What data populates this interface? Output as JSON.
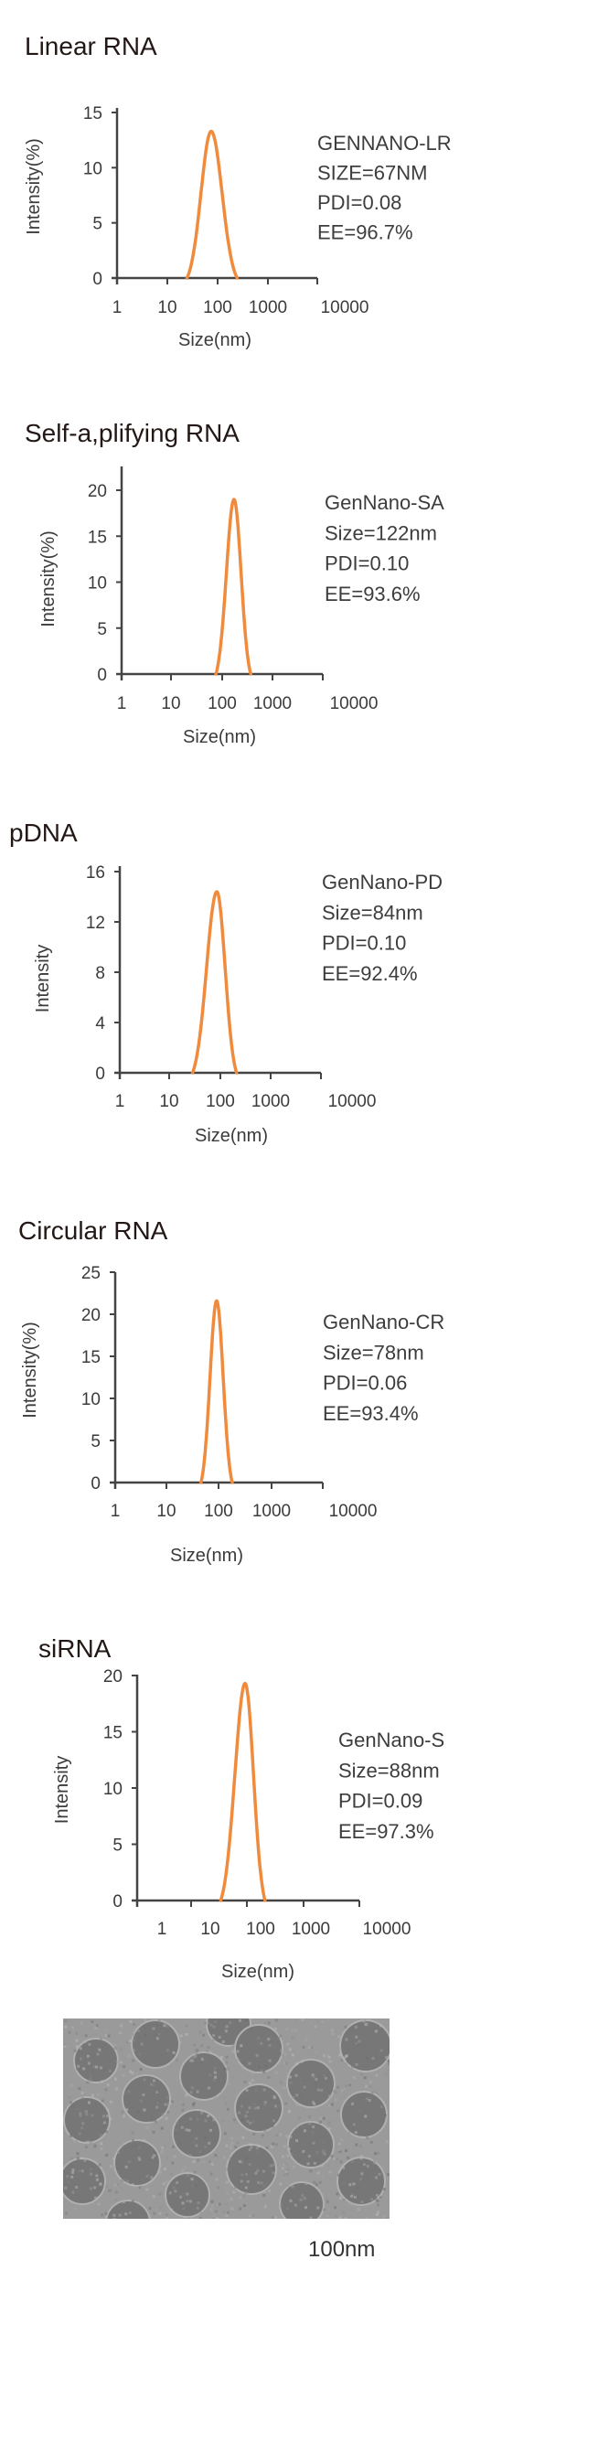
{
  "colors": {
    "curve": "#F08A3C",
    "axis": "#444444",
    "tem_bg": "#9a9a9a",
    "tem_particle": "#777777"
  },
  "chart_data": [
    {
      "type": "line",
      "title": "Linear RNA",
      "xlabel": "Size(nm)",
      "ylabel": "Intensity(%)",
      "xscale": "log",
      "x_ticks": [
        "1",
        "10",
        "100",
        "1000",
        "10000"
      ],
      "y_ticks": [
        "0",
        "5",
        "10",
        "15"
      ],
      "ylim": [
        0,
        15
      ],
      "series": [
        {
          "name": "GENNANO-LR",
          "peak_size_nm": 76,
          "peak_intensity": 13.3,
          "range_nm": [
            25,
            250
          ]
        }
      ],
      "legend": [
        "GENNANO-LR",
        "SIZE=67NM",
        "PDI=0.08",
        "EE=96.7%"
      ]
    },
    {
      "type": "line",
      "title": "Self-a,plifying RNA",
      "xlabel": "Size(nm)",
      "ylabel": "Intensity(%)",
      "xscale": "log",
      "x_ticks": [
        "1",
        "10",
        "100",
        "1000",
        "10000"
      ],
      "y_ticks": [
        "0",
        "5",
        "10",
        "15",
        "20"
      ],
      "ylim": [
        0,
        22
      ],
      "series": [
        {
          "name": "GenNano-SA",
          "peak_size_nm": 172,
          "peak_intensity": 19,
          "range_nm": [
            75,
            370
          ]
        }
      ],
      "legend": [
        "GenNano-SA",
        "Size=122nm",
        "PDI=0.10",
        "EE=93.6%"
      ]
    },
    {
      "type": "line",
      "title": "pDNA",
      "xlabel": "Size(nm)",
      "ylabel": "Intensity",
      "xscale": "log",
      "x_ticks": [
        "1",
        "10",
        "100",
        "1000",
        "10000"
      ],
      "y_ticks": [
        "0",
        "4",
        "8",
        "12",
        "16"
      ],
      "ylim": [
        0,
        16
      ],
      "series": [
        {
          "name": "GenNano-PD",
          "peak_size_nm": 85,
          "peak_intensity": 14.4,
          "range_nm": [
            28,
            210
          ]
        }
      ],
      "legend": [
        "GenNano-PD",
        "Size=84nm",
        "PDI=0.10",
        "EE=92.4%"
      ]
    },
    {
      "type": "line",
      "title": "Circular RNA",
      "xlabel": "Size(nm)",
      "ylabel": "Intensity(%)",
      "xscale": "log",
      "x_ticks": [
        "1",
        "10",
        "100",
        "1000",
        "10000"
      ],
      "y_ticks": [
        "0",
        "5",
        "10",
        "15",
        "20",
        "25"
      ],
      "ylim": [
        0,
        25
      ],
      "series": [
        {
          "name": "GenNano-CR",
          "peak_size_nm": 90,
          "peak_intensity": 21.6,
          "range_nm": [
            45,
            180
          ]
        }
      ],
      "legend": [
        "GenNano-CR",
        "Size=78nm",
        "PDI=0.06",
        "EE=93.4%"
      ]
    },
    {
      "type": "line",
      "title": "siRNA",
      "xlabel": "Size(nm)",
      "ylabel": "Intensity",
      "xscale": "log",
      "x_ticks": [
        "1",
        "10",
        "100",
        "1000",
        "10000"
      ],
      "y_ticks": [
        "0",
        "5",
        "10",
        "15",
        "20"
      ],
      "ylim": [
        0,
        20
      ],
      "series": [
        {
          "name": "GenNano-S",
          "peak_size_nm": 88,
          "peak_intensity": 19.3,
          "range_nm": [
            32,
            200
          ]
        }
      ],
      "legend": [
        "GenNano-S",
        "Size=88nm",
        "PDI=0.09",
        "EE=97.3%"
      ]
    }
  ],
  "tem": {
    "scale_label": "100nm"
  }
}
